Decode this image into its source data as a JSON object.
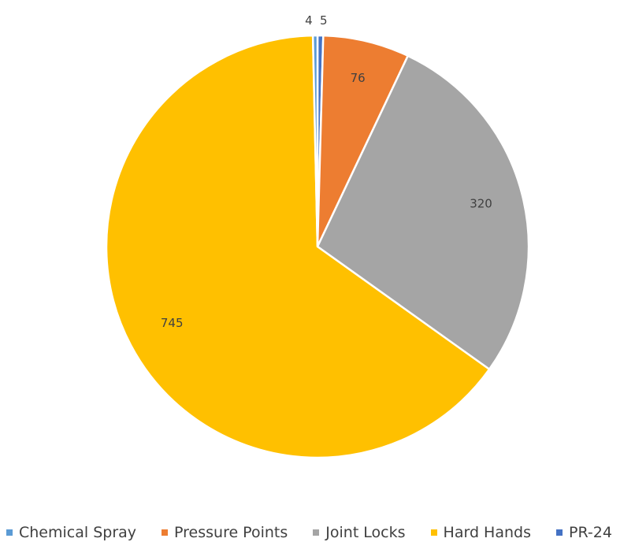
{
  "chart_data": {
    "type": "pie",
    "categories": [
      "Chemical Spray",
      "Pressure Points",
      "Joint Locks",
      "Hard Hands",
      "PR-24"
    ],
    "values": [
      4,
      76,
      320,
      745,
      5
    ],
    "data_labels": [
      "4",
      "76",
      "320",
      "745",
      "5"
    ],
    "colors": [
      "#5B9BD5",
      "#ED7D31",
      "#A5A5A5",
      "#FFC000",
      "#4472C4"
    ],
    "legend_position": "bottom",
    "title": ""
  }
}
